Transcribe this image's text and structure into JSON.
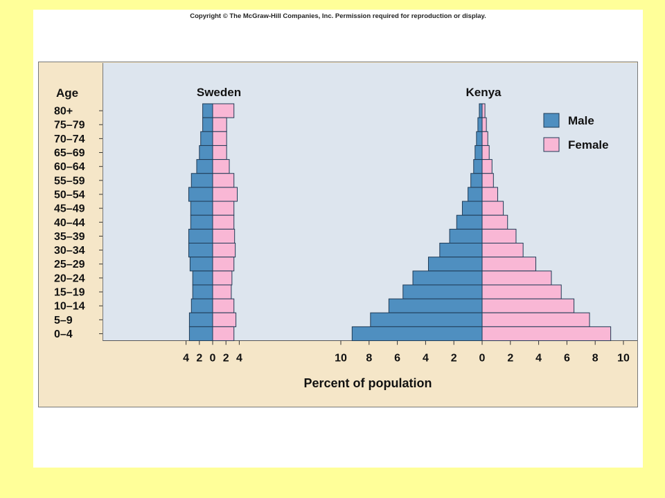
{
  "copyright": "Copyright © The McGraw-Hill Companies, Inc. Permission required for reproduction or display.",
  "chart_data": {
    "type": "bar",
    "orientation": "horizontal",
    "y_axis_title": "Age",
    "x_axis_title": "Percent of population",
    "categories": [
      "80+",
      "75–79",
      "70–74",
      "65–69",
      "60–64",
      "55–59",
      "50–54",
      "45–49",
      "40–44",
      "35–39",
      "30–34",
      "25–29",
      "20–24",
      "15–19",
      "10–14",
      "5–9",
      "0–4"
    ],
    "legend": [
      {
        "label": "Male",
        "color": "#4f8fc0"
      },
      {
        "label": "Female",
        "color": "#f9b7d5"
      }
    ],
    "panels": [
      {
        "title": "Sweden",
        "x_ticks": [
          "4",
          "2",
          "0",
          "2",
          "4"
        ],
        "male": [
          1.5,
          1.5,
          1.8,
          2.0,
          2.4,
          3.2,
          3.6,
          3.3,
          3.3,
          3.6,
          3.6,
          3.4,
          3.0,
          3.0,
          3.2,
          3.5,
          3.5
        ],
        "female": [
          3.2,
          2.1,
          2.1,
          2.1,
          2.5,
          3.2,
          3.7,
          3.2,
          3.2,
          3.3,
          3.4,
          3.2,
          2.9,
          2.8,
          3.2,
          3.5,
          3.2
        ]
      },
      {
        "title": "Kenya",
        "x_ticks": [
          "10",
          "8",
          "6",
          "4",
          "2",
          "0",
          "2",
          "4",
          "6",
          "8",
          "10"
        ],
        "male": [
          0.2,
          0.3,
          0.4,
          0.5,
          0.6,
          0.8,
          1.0,
          1.4,
          1.8,
          2.3,
          3.0,
          3.8,
          4.9,
          5.6,
          6.6,
          7.9,
          9.2
        ],
        "female": [
          0.2,
          0.3,
          0.4,
          0.5,
          0.7,
          0.8,
          1.1,
          1.5,
          1.8,
          2.4,
          2.9,
          3.8,
          4.9,
          5.6,
          6.5,
          7.6,
          9.1
        ]
      }
    ]
  }
}
